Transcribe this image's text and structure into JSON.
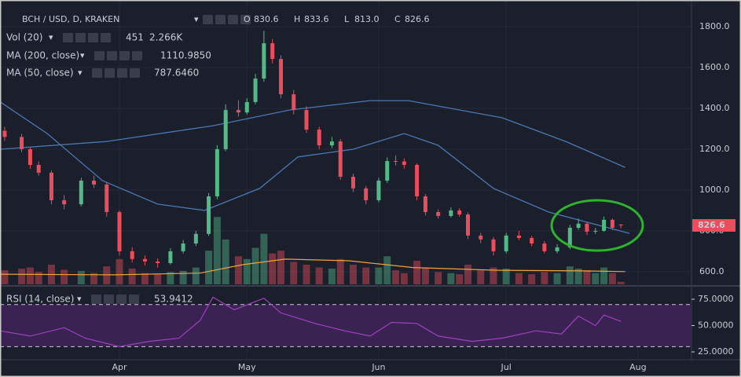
{
  "chart_data": {
    "type": "candlestick",
    "title": "BCH / USD, D, KRAKEN",
    "ohlc": {
      "labels": [
        "O",
        "H",
        "L",
        "C"
      ],
      "values": [
        830.6,
        833.6,
        813.0,
        826.6
      ],
      "value_labels": [
        "830.6",
        "833.6",
        "813.0",
        "826.6"
      ]
    },
    "colors": {
      "up": "#53b987",
      "down": "#eb4d5c"
    },
    "x": [
      4,
      8,
      10,
      12,
      15,
      18,
      22,
      25,
      28,
      31,
      34,
      37,
      40,
      43,
      46,
      49,
      52,
      54,
      56,
      59,
      61,
      63,
      65,
      67,
      69,
      72,
      75,
      78,
      81,
      83,
      86,
      89,
      92,
      94,
      96,
      98,
      101,
      103,
      106,
      109,
      111,
      113,
      116,
      119,
      122,
      125,
      128,
      131,
      134,
      137,
      139,
      141,
      143,
      145,
      147,
      149
    ],
    "open": [
      1290,
      1260,
      1200,
      1123,
      1085,
      950,
      930,
      1046,
      1027,
      892,
      700,
      662,
      650,
      642,
      700,
      738,
      785,
      969,
      1200,
      1392,
      1380,
      1431,
      1546,
      1719,
      1642,
      1469,
      1392,
      1296,
      1219,
      1238,
      1065,
      1008,
      950,
      1046,
      1142,
      1140,
      1123,
      969,
      892,
      873,
      900,
      880,
      777,
      758,
      700,
      777,
      765,
      738,
      700,
      719,
      815,
      835,
      796,
      800,
      854,
      830.6
    ],
    "high": [
      1310,
      1275,
      1210,
      1140,
      1095,
      975,
      1060,
      1070,
      1040,
      900,
      720,
      680,
      665,
      715,
      755,
      800,
      985,
      1220,
      1420,
      1440,
      1450,
      1570,
      1780,
      1740,
      1660,
      1490,
      1410,
      1310,
      1260,
      1250,
      1080,
      1020,
      1060,
      1160,
      1170,
      1155,
      1130,
      980,
      905,
      915,
      910,
      890,
      790,
      770,
      790,
      800,
      775,
      750,
      735,
      830,
      860,
      845,
      815,
      870,
      860,
      833.6
    ],
    "low": [
      1240,
      1185,
      1105,
      1070,
      930,
      905,
      920,
      1010,
      870,
      680,
      645,
      630,
      620,
      635,
      690,
      725,
      775,
      955,
      1190,
      1360,
      1370,
      1420,
      1530,
      1620,
      1450,
      1370,
      1280,
      1200,
      1205,
      1050,
      990,
      930,
      940,
      1035,
      1120,
      1105,
      950,
      875,
      860,
      865,
      870,
      760,
      740,
      680,
      690,
      755,
      725,
      690,
      690,
      710,
      805,
      780,
      785,
      795,
      805,
      813.0
    ],
    "close": [
      1260,
      1200,
      1123,
      1085,
      950,
      930,
      1046,
      1027,
      892,
      700,
      662,
      650,
      642,
      700,
      738,
      785,
      969,
      1200,
      1392,
      1380,
      1431,
      1546,
      1719,
      1642,
      1469,
      1392,
      1296,
      1219,
      1238,
      1065,
      1008,
      950,
      1046,
      1142,
      1140,
      1123,
      969,
      892,
      873,
      900,
      880,
      777,
      758,
      700,
      777,
      765,
      738,
      700,
      719,
      815,
      835,
      796,
      800,
      854,
      815,
      826.6
    ],
    "xlim": [
      2.9,
      165.6
    ],
    "xticks": [
      {
        "value": 31,
        "label": "Apr"
      },
      {
        "value": 61,
        "label": "May"
      },
      {
        "value": 92,
        "label": "Jun"
      },
      {
        "value": 122,
        "label": "Jul"
      },
      {
        "value": 153,
        "label": "Aug"
      }
    ],
    "ylim": [
      538,
      1931
    ],
    "yticks": [
      {
        "value": 600,
        "label": "600.0"
      },
      {
        "value": 800,
        "label": "800.0"
      },
      {
        "value": 1000,
        "label": "1000.0"
      },
      {
        "value": 1200,
        "label": "1200.0"
      },
      {
        "value": 1400,
        "label": "1400.0"
      },
      {
        "value": 1600,
        "label": "1600.0"
      },
      {
        "value": 1800,
        "label": "1800.0"
      }
    ],
    "volume": {
      "name": "Vol (20)",
      "ylim": [
        0,
        14000
      ],
      "values": [
        2500,
        2800,
        3000,
        2200,
        3500,
        2600,
        2400,
        2000,
        3200,
        4500,
        2800,
        2000,
        1800,
        2200,
        2400,
        3000,
        6000,
        12000,
        8000,
        5000,
        4500,
        6500,
        9000,
        5500,
        6000,
        4000,
        3500,
        3000,
        2800,
        4500,
        3500,
        3000,
        3000,
        5000,
        2500,
        2000,
        4200,
        3000,
        2200,
        2000,
        1800,
        3500,
        2500,
        3000,
        2800,
        2000,
        1800,
        2200,
        2000,
        3200,
        2800,
        2500,
        2000,
        3000,
        2000,
        451
      ],
      "ma": {
        "color": "#f0a33a",
        "x": [
          3,
          30,
          50,
          60,
          70,
          85,
          100,
          120,
          140,
          150
        ],
        "values": [
          1800,
          1700,
          2000,
          3500,
          4500,
          4200,
          3000,
          2500,
          2400,
          2266
        ],
        "value_label": "2.266K"
      }
    },
    "ma200": {
      "name": "MA (200, close)",
      "color": "#4a78b5",
      "x": [
        3,
        28,
        53,
        71,
        90,
        99,
        121,
        136,
        150
      ],
      "values": [
        1200,
        1238,
        1315,
        1392,
        1438,
        1438,
        1354,
        1238,
        1110.985
      ],
      "value_label": "1110.9850"
    },
    "ma50": {
      "name": "MA (50, close)",
      "color": "#4a78b5",
      "x": [
        3,
        14,
        27,
        40,
        51,
        64,
        73,
        86,
        98,
        106,
        119,
        132,
        151
      ],
      "values": [
        1431,
        1277,
        1046,
        931,
        900,
        1008,
        1162,
        1200,
        1277,
        1219,
        1008,
        892,
        787.646
      ],
      "value_label": "787.6460"
    },
    "rsi": {
      "name": "RSI (14, close)",
      "color": "#a03fc0",
      "ylim": [
        18.3,
        84.7
      ],
      "yticks": [
        {
          "value": 25,
          "label": "25.0000"
        },
        {
          "value": 50,
          "label": "50.0000"
        },
        {
          "value": 75,
          "label": "75.0000"
        }
      ],
      "bands": [
        30,
        70
      ],
      "x": [
        3,
        10,
        18,
        23,
        31,
        38,
        45,
        50,
        53,
        58,
        65,
        69,
        77,
        84,
        90,
        95,
        101,
        106,
        114,
        121,
        129,
        135,
        139,
        143,
        145,
        149
      ],
      "values": [
        45,
        40,
        48,
        38,
        30,
        35,
        38,
        55,
        77,
        65,
        76,
        62,
        52,
        45,
        40,
        53,
        52,
        40,
        35,
        38,
        45,
        42,
        59,
        50,
        60,
        53.9412
      ],
      "value_label": "53.9412"
    }
  }
}
